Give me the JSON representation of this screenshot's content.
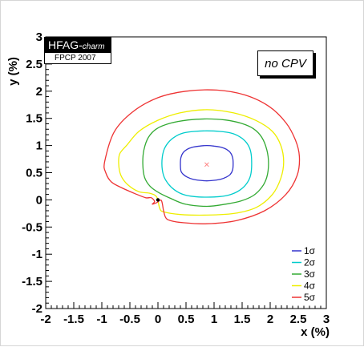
{
  "labels": {
    "hfag_main": "HFAG-",
    "hfag_sub": "charm",
    "event": "FPCP 2007",
    "no_cpv": "no CPV"
  },
  "chart_data": {
    "type": "contour",
    "title": "",
    "xlabel": "x (%)",
    "ylabel": "y (%)",
    "xlim": [
      -2,
      3
    ],
    "ylim": [
      -2,
      3
    ],
    "x_ticks": [
      "-2",
      "-1.5",
      "-1",
      "-0.5",
      "0",
      "0.5",
      "1",
      "1.5",
      "2",
      "2.5",
      "3"
    ],
    "y_ticks": [
      "-2",
      "-1.5",
      "-1",
      "-0.5",
      "0",
      "0.5",
      "1",
      "1.5",
      "2",
      "2.5",
      "3"
    ],
    "grid": false,
    "legend_position": "bottom-right",
    "best_fit": {
      "x": 0.87,
      "y": 0.65,
      "color": "#ff8080"
    },
    "no_cpv_point": {
      "x": 0.0,
      "y": 0.0
    },
    "series": [
      {
        "name": "1σ",
        "color": "#3333cc",
        "x": [
          0.4,
          0.41,
          0.45,
          0.52,
          0.62,
          0.74,
          0.87,
          1.0,
          1.12,
          1.22,
          1.29,
          1.33,
          1.34,
          1.33,
          1.29,
          1.22,
          1.12,
          1.0,
          0.87,
          0.74,
          0.62,
          0.52,
          0.45,
          0.41,
          0.4
        ],
        "y": [
          0.67,
          0.53,
          0.47,
          0.42,
          0.38,
          0.36,
          0.35,
          0.36,
          0.38,
          0.42,
          0.47,
          0.55,
          0.67,
          0.78,
          0.87,
          0.93,
          0.97,
          0.99,
          1.0,
          0.99,
          0.97,
          0.93,
          0.87,
          0.78,
          0.67
        ]
      },
      {
        "name": "2σ",
        "color": "#00cccc",
        "x": [
          0.07,
          0.1,
          0.18,
          0.3,
          0.45,
          0.65,
          0.87,
          1.1,
          1.3,
          1.46,
          1.58,
          1.65,
          1.67,
          1.65,
          1.58,
          1.46,
          1.3,
          1.1,
          0.87,
          0.65,
          0.45,
          0.3,
          0.18,
          0.1,
          0.07
        ],
        "y": [
          0.67,
          0.45,
          0.3,
          0.18,
          0.1,
          0.06,
          0.05,
          0.06,
          0.1,
          0.18,
          0.3,
          0.45,
          0.67,
          0.9,
          1.05,
          1.16,
          1.23,
          1.26,
          1.27,
          1.26,
          1.23,
          1.16,
          1.05,
          0.9,
          0.67
        ]
      },
      {
        "name": "3σ",
        "color": "#33aa33",
        "x": [
          -0.27,
          -0.24,
          -0.14,
          0.02,
          0.22,
          0.49,
          0.87,
          1.2,
          1.48,
          1.7,
          1.85,
          1.94,
          1.97,
          1.94,
          1.85,
          1.7,
          1.48,
          1.2,
          0.87,
          0.54,
          0.22,
          -0.02,
          -0.17,
          -0.25,
          -0.27
        ],
        "y": [
          0.67,
          0.42,
          0.25,
          0.13,
          0.03,
          -0.08,
          -0.12,
          -0.08,
          -0.02,
          0.08,
          0.23,
          0.42,
          0.67,
          0.92,
          1.15,
          1.31,
          1.41,
          1.47,
          1.49,
          1.47,
          1.41,
          1.31,
          1.15,
          0.92,
          0.67
        ]
      },
      {
        "name": "4σ",
        "color": "#eeee00",
        "x": [
          -0.7,
          -0.66,
          -0.54,
          -0.34,
          -0.14,
          -0.02,
          0.03,
          0.1,
          0.4,
          0.87,
          1.35,
          1.75,
          2.04,
          2.19,
          2.24,
          2.19,
          2.04,
          1.75,
          1.35,
          0.87,
          0.39,
          -0.01,
          -0.34,
          -0.56,
          -0.68,
          -0.7
        ],
        "y": [
          0.67,
          0.45,
          0.28,
          0.15,
          0.12,
          0.05,
          -0.15,
          -0.22,
          -0.27,
          -0.28,
          -0.25,
          -0.14,
          0.1,
          0.4,
          0.7,
          1.0,
          1.26,
          1.46,
          1.6,
          1.66,
          1.6,
          1.46,
          1.26,
          1.0,
          0.85,
          0.67
        ]
      },
      {
        "name": "5σ",
        "color": "#ee3333",
        "x": [
          -0.95,
          -0.93,
          -0.83,
          -0.64,
          -0.42,
          -0.22,
          -0.12,
          -0.06,
          -0.1,
          -0.02,
          0.06,
          0.1,
          0.14,
          0.22,
          0.45,
          0.87,
          1.4,
          1.9,
          2.28,
          2.48,
          2.52,
          2.45,
          2.28,
          1.98,
          1.55,
          1.05,
          0.5,
          0.0,
          -0.45,
          -0.78,
          -0.95
        ],
        "y": [
          0.7,
          0.5,
          0.33,
          0.22,
          0.12,
          0.04,
          0.04,
          -0.03,
          -0.08,
          -0.05,
          -0.01,
          -0.2,
          -0.33,
          -0.38,
          -0.42,
          -0.44,
          -0.38,
          -0.2,
          0.1,
          0.45,
          0.8,
          1.1,
          1.42,
          1.72,
          1.93,
          2.02,
          2.0,
          1.88,
          1.62,
          1.25,
          0.7
        ]
      }
    ]
  }
}
